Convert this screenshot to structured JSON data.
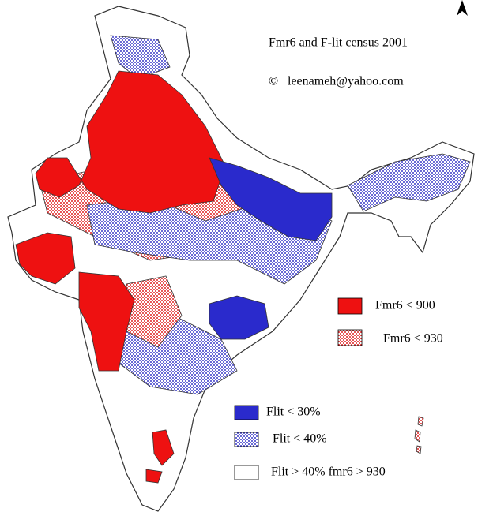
{
  "map": {
    "title": "Fmr6 and F-lit census 2001",
    "copyright": "©",
    "credit": "leenameh@yahoo.com",
    "legend": [
      {
        "label": "Fmr6 < 900"
      },
      {
        "label": "Fmr6 < 930"
      },
      {
        "label": "Flit < 30%"
      },
      {
        "label": "Flit < 40%"
      },
      {
        "label": "Flit > 40% fmr6 > 930"
      }
    ]
  }
}
